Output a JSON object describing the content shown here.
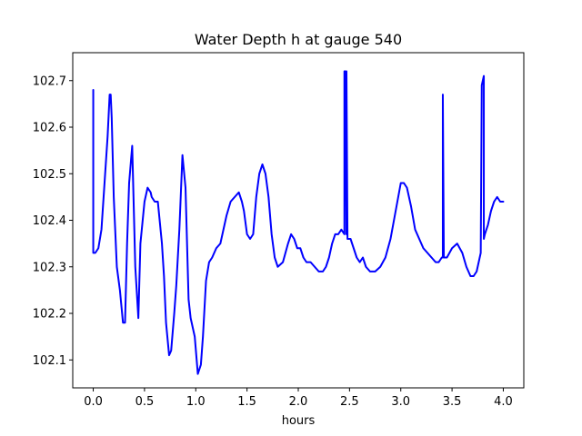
{
  "chart_data": {
    "type": "line",
    "title": "Water Depth h at gauge 540",
    "xlabel": "hours",
    "ylabel": "",
    "xlim": [
      -0.2,
      4.2
    ],
    "ylim": [
      102.04,
      102.76
    ],
    "xticks": [
      0.0,
      0.5,
      1.0,
      1.5,
      2.0,
      2.5,
      3.0,
      3.5,
      4.0
    ],
    "xtick_labels": [
      "0.0",
      "0.5",
      "1.0",
      "1.5",
      "2.0",
      "2.5",
      "3.0",
      "3.5",
      "4.0"
    ],
    "yticks": [
      102.1,
      102.2,
      102.3,
      102.4,
      102.5,
      102.6,
      102.7
    ],
    "ytick_labels": [
      "102.1",
      "102.2",
      "102.3",
      "102.4",
      "102.5",
      "102.6",
      "102.7"
    ],
    "grid": false,
    "line_color": "#0000ff",
    "series": [
      {
        "name": "",
        "x": [
          0.0,
          0.0,
          0.001,
          0.02,
          0.05,
          0.08,
          0.11,
          0.14,
          0.16,
          0.17,
          0.18,
          0.2,
          0.23,
          0.26,
          0.29,
          0.31,
          0.33,
          0.35,
          0.38,
          0.41,
          0.44,
          0.46,
          0.5,
          0.53,
          0.56,
          0.57,
          0.6,
          0.63,
          0.67,
          0.69,
          0.71,
          0.74,
          0.76,
          0.79,
          0.81,
          0.84,
          0.87,
          0.9,
          0.93,
          0.95,
          0.99,
          1.02,
          1.05,
          1.07,
          1.1,
          1.13,
          1.16,
          1.2,
          1.24,
          1.27,
          1.3,
          1.34,
          1.38,
          1.42,
          1.45,
          1.47,
          1.5,
          1.53,
          1.56,
          1.59,
          1.62,
          1.65,
          1.68,
          1.71,
          1.74,
          1.77,
          1.8,
          1.85,
          1.9,
          1.93,
          1.96,
          1.99,
          2.02,
          2.05,
          2.08,
          2.12,
          2.16,
          2.2,
          2.24,
          2.27,
          2.3,
          2.33,
          2.36,
          2.39,
          2.42,
          2.45,
          2.45,
          2.46,
          2.47,
          2.47,
          2.48,
          2.51,
          2.54,
          2.57,
          2.6,
          2.63,
          2.66,
          2.7,
          2.75,
          2.8,
          2.85,
          2.9,
          2.95,
          3.0,
          3.03,
          3.06,
          3.1,
          3.14,
          3.18,
          3.22,
          3.26,
          3.3,
          3.34,
          3.37,
          3.4,
          3.41,
          3.41,
          3.42,
          3.45,
          3.5,
          3.55,
          3.6,
          3.64,
          3.68,
          3.71,
          3.74,
          3.76,
          3.78,
          3.79,
          3.81,
          3.81,
          3.82,
          3.85,
          3.88,
          3.91,
          3.94,
          3.97,
          3.98,
          4.0
        ],
        "y": [
          102.68,
          102.33,
          102.33,
          102.33,
          102.34,
          102.38,
          102.48,
          102.58,
          102.67,
          102.67,
          102.62,
          102.45,
          102.3,
          102.25,
          102.18,
          102.18,
          102.35,
          102.48,
          102.56,
          102.3,
          102.19,
          102.35,
          102.44,
          102.47,
          102.46,
          102.45,
          102.44,
          102.44,
          102.35,
          102.28,
          102.18,
          102.11,
          102.12,
          102.2,
          102.26,
          102.38,
          102.54,
          102.47,
          102.23,
          102.19,
          102.15,
          102.07,
          102.09,
          102.15,
          102.27,
          102.31,
          102.32,
          102.34,
          102.35,
          102.38,
          102.41,
          102.44,
          102.45,
          102.46,
          102.44,
          102.42,
          102.37,
          102.36,
          102.37,
          102.45,
          102.5,
          102.52,
          102.5,
          102.45,
          102.37,
          102.32,
          102.3,
          102.31,
          102.35,
          102.37,
          102.36,
          102.34,
          102.34,
          102.32,
          102.31,
          102.31,
          102.3,
          102.29,
          102.29,
          102.3,
          102.32,
          102.35,
          102.37,
          102.37,
          102.38,
          102.37,
          102.72,
          102.72,
          102.37,
          102.72,
          102.36,
          102.36,
          102.34,
          102.32,
          102.31,
          102.32,
          102.3,
          102.29,
          102.29,
          102.3,
          102.32,
          102.36,
          102.42,
          102.48,
          102.48,
          102.47,
          102.43,
          102.38,
          102.36,
          102.34,
          102.33,
          102.32,
          102.31,
          102.31,
          102.32,
          102.32,
          102.67,
          102.32,
          102.32,
          102.34,
          102.35,
          102.33,
          102.3,
          102.28,
          102.28,
          102.29,
          102.31,
          102.33,
          102.69,
          102.71,
          102.36,
          102.37,
          102.39,
          102.42,
          102.44,
          102.45,
          102.44,
          102.44,
          102.44
        ]
      }
    ]
  }
}
